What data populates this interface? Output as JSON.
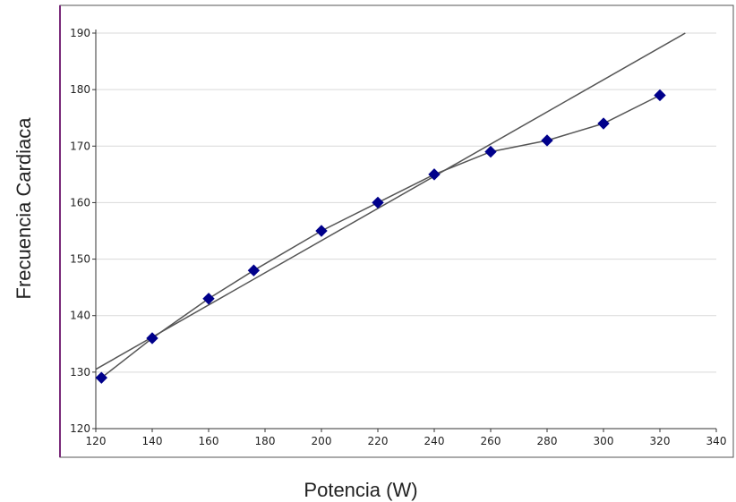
{
  "colors": {
    "frame_left": "#7a2a7a",
    "frame": "#555555",
    "grid": "#d9d9d9",
    "series_line": "#555555",
    "marker": "#00008b",
    "trend_line": "#555555"
  },
  "chart_data": {
    "type": "line",
    "title": "",
    "xlabel": "Potencia (W)",
    "ylabel": "Frecuencia Cardiaca",
    "xlim": [
      120,
      340
    ],
    "ylim": [
      120,
      190
    ],
    "x_ticks": [
      "120",
      "140",
      "160",
      "180",
      "200",
      "220",
      "240",
      "260",
      "280",
      "300",
      "320",
      "340"
    ],
    "y_ticks": [
      "120",
      "130",
      "140",
      "150",
      "160",
      "170",
      "180",
      "190"
    ],
    "grid": "horizontal",
    "series": [
      {
        "marker": "diamond",
        "points": [
          {
            "x": 122,
            "y": 129
          },
          {
            "x": 140,
            "y": 136
          },
          {
            "x": 160,
            "y": 143
          },
          {
            "x": 176,
            "y": 148
          },
          {
            "x": 200,
            "y": 155
          },
          {
            "x": 220,
            "y": 160
          },
          {
            "x": 240,
            "y": 165
          },
          {
            "x": 260,
            "y": 169
          },
          {
            "x": 280,
            "y": 171
          },
          {
            "x": 300,
            "y": 174
          },
          {
            "x": 320,
            "y": 179
          }
        ]
      }
    ],
    "trendline": {
      "from": {
        "x": 120,
        "y": 130.5
      },
      "to": {
        "x": 329,
        "y": 190
      }
    }
  }
}
